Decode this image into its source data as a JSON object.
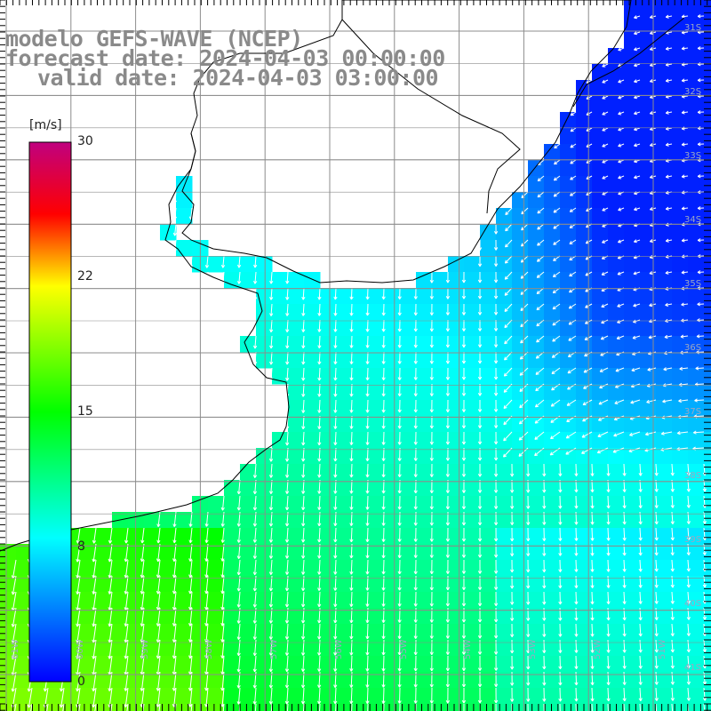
{
  "titles": {
    "line1": "modelo GEFS-WAVE (NCEP)",
    "line2": "forecast date: 2024-04-03 00:00:00",
    "line3": "valid date: 2024-04-03 03:00:00"
  },
  "colorbar": {
    "unit": "[m/s]",
    "ticks": [
      "30",
      "22",
      "15",
      "8",
      "0"
    ],
    "tick_values": [
      30,
      22,
      15,
      8,
      0
    ],
    "range": [
      0,
      30
    ],
    "colors": [
      "#0000ff",
      "#00ffff",
      "#00ff00",
      "#ffff00",
      "#ff0000",
      "#c0007f"
    ]
  },
  "axes": {
    "lon_labels": [
      "61W",
      "60W",
      "59W",
      "58W",
      "57W",
      "56W",
      "55W",
      "54W",
      "53W",
      "52W",
      "51W"
    ],
    "lat_labels": [
      "31S",
      "32S",
      "33S",
      "34S",
      "35S",
      "36S",
      "37S",
      "38S",
      "39S",
      "40S",
      "41S"
    ]
  },
  "colors": {
    "land": "#ffffff",
    "grid": "#8c8c8c",
    "coast": "#000000",
    "arrows": "#ffffff",
    "title": "#8a8a8a"
  }
}
